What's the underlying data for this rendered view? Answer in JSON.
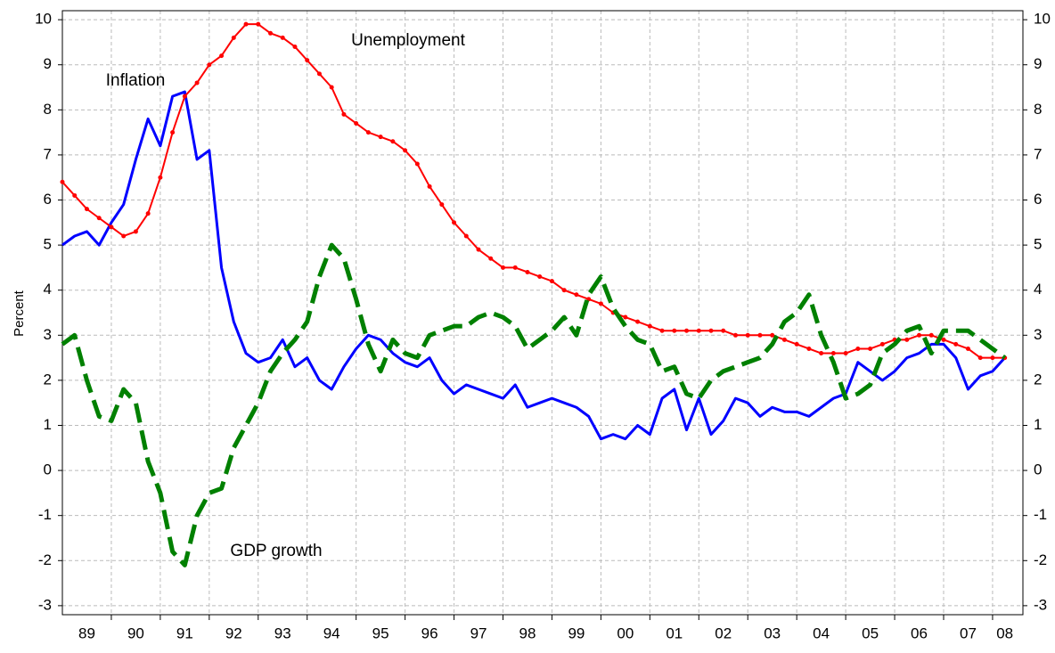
{
  "chart_data": {
    "type": "line",
    "annotations": [
      "Inflation",
      "Unemployment",
      "GDP growth"
    ],
    "ylabel": "Percent",
    "x": [
      1989,
      1989.25,
      1989.5,
      1989.75,
      1990,
      1990.25,
      1990.5,
      1990.75,
      1991,
      1991.25,
      1991.5,
      1991.75,
      1992,
      1992.25,
      1992.5,
      1992.75,
      1993,
      1993.25,
      1993.5,
      1993.75,
      1994,
      1994.25,
      1994.5,
      1994.75,
      1995,
      1995.25,
      1995.5,
      1995.75,
      1996,
      1996.25,
      1996.5,
      1996.75,
      1997,
      1997.25,
      1997.5,
      1997.75,
      1998,
      1998.25,
      1998.5,
      1998.75,
      1999,
      1999.25,
      1999.5,
      1999.75,
      2000,
      2000.25,
      2000.5,
      2000.75,
      2001,
      2001.25,
      2001.5,
      2001.75,
      2002,
      2002.25,
      2002.5,
      2002.75,
      2003,
      2003.25,
      2003.5,
      2003.75,
      2004,
      2004.25,
      2004.5,
      2004.75,
      2005,
      2005.25,
      2005.5,
      2005.75,
      2006,
      2006.25,
      2006.5,
      2006.75,
      2007,
      2007.25,
      2007.5,
      2007.75,
      2008,
      2008.25
    ],
    "series": [
      {
        "name": "Inflation",
        "color": "#0000ff",
        "style": "solid",
        "values": [
          5.0,
          5.2,
          5.3,
          5.0,
          5.5,
          5.9,
          6.9,
          7.8,
          7.2,
          8.3,
          8.4,
          6.9,
          7.1,
          4.5,
          3.3,
          2.6,
          2.4,
          2.5,
          2.9,
          2.3,
          2.5,
          2.0,
          1.8,
          2.3,
          2.7,
          3.0,
          2.9,
          2.6,
          2.4,
          2.3,
          2.5,
          2.0,
          1.7,
          1.9,
          1.8,
          1.7,
          1.6,
          1.9,
          1.4,
          1.5,
          1.6,
          1.5,
          1.4,
          1.2,
          0.7,
          0.8,
          0.7,
          1.0,
          0.8,
          1.6,
          1.8,
          0.9,
          1.6,
          0.8,
          1.1,
          1.6,
          1.5,
          1.2,
          1.4,
          1.3,
          1.3,
          1.2,
          1.4,
          1.6,
          1.7,
          2.4,
          2.2,
          2.0,
          2.2,
          2.5,
          2.6,
          2.8,
          2.8,
          2.5,
          1.8,
          2.1,
          2.2,
          2.5
        ]
      },
      {
        "name": "Unemployment",
        "color": "#ff0000",
        "style": "dots",
        "values": [
          6.4,
          6.1,
          5.8,
          5.6,
          5.4,
          5.2,
          5.3,
          5.7,
          6.5,
          7.5,
          8.3,
          8.6,
          9.0,
          9.2,
          9.6,
          9.9,
          9.9,
          9.7,
          9.6,
          9.4,
          9.1,
          8.8,
          8.5,
          7.9,
          7.7,
          7.5,
          7.4,
          7.3,
          7.1,
          6.8,
          6.3,
          5.9,
          5.5,
          5.2,
          4.9,
          4.7,
          4.5,
          4.5,
          4.4,
          4.3,
          4.2,
          4.0,
          3.9,
          3.8,
          3.7,
          3.5,
          3.4,
          3.3,
          3.2,
          3.1,
          3.1,
          3.1,
          3.1,
          3.1,
          3.1,
          3.0,
          3.0,
          3.0,
          3.0,
          2.9,
          2.8,
          2.7,
          2.6,
          2.6,
          2.6,
          2.7,
          2.7,
          2.8,
          2.9,
          2.9,
          3.0,
          3.0,
          2.9,
          2.8,
          2.7,
          2.5,
          2.5,
          2.5
        ]
      },
      {
        "name": "GDP growth",
        "color": "#008000",
        "style": "dashed",
        "values": [
          2.8,
          3.0,
          2.0,
          1.2,
          1.1,
          1.8,
          1.5,
          0.2,
          -0.5,
          -1.8,
          -2.1,
          -1.0,
          -0.5,
          -0.4,
          0.5,
          1.0,
          1.5,
          2.2,
          2.6,
          2.9,
          3.3,
          4.3,
          5.0,
          4.7,
          3.8,
          2.8,
          2.2,
          2.9,
          2.6,
          2.5,
          3.0,
          3.1,
          3.2,
          3.2,
          3.4,
          3.5,
          3.4,
          3.2,
          2.7,
          2.9,
          3.1,
          3.4,
          3.0,
          3.9,
          4.3,
          3.6,
          3.2,
          2.9,
          2.8,
          2.2,
          2.3,
          1.7,
          1.6,
          2.0,
          2.2,
          2.3,
          2.4,
          2.5,
          2.8,
          3.3,
          3.5,
          3.9,
          3.0,
          2.4,
          1.6,
          1.7,
          1.9,
          2.6,
          2.8,
          3.1,
          3.2,
          2.6,
          3.1,
          3.1,
          3.1,
          2.9,
          2.7,
          2.5
        ]
      }
    ],
    "xlim": [
      1989,
      2008.62
    ],
    "xticks": [
      {
        "value": 1989.5,
        "label": "89"
      },
      {
        "value": 1990.5,
        "label": "90"
      },
      {
        "value": 1991.5,
        "label": "91"
      },
      {
        "value": 1992.5,
        "label": "92"
      },
      {
        "value": 1993.5,
        "label": "93"
      },
      {
        "value": 1994.5,
        "label": "94"
      },
      {
        "value": 1995.5,
        "label": "95"
      },
      {
        "value": 1996.5,
        "label": "96"
      },
      {
        "value": 1997.5,
        "label": "97"
      },
      {
        "value": 1998.5,
        "label": "98"
      },
      {
        "value": 1999.5,
        "label": "99"
      },
      {
        "value": 2000.5,
        "label": "00"
      },
      {
        "value": 2001.5,
        "label": "01"
      },
      {
        "value": 2002.5,
        "label": "02"
      },
      {
        "value": 2003.5,
        "label": "03"
      },
      {
        "value": 2004.5,
        "label": "04"
      },
      {
        "value": 2005.5,
        "label": "05"
      },
      {
        "value": 2006.5,
        "label": "06"
      },
      {
        "value": 2007.5,
        "label": "07"
      },
      {
        "value": 2008.25,
        "label": "08"
      }
    ],
    "xgrid": [
      1990,
      1991,
      1992,
      1993,
      1994,
      1995,
      1996,
      1997,
      1998,
      1999,
      2000,
      2001,
      2002,
      2003,
      2004,
      2005,
      2006,
      2007,
      2008
    ],
    "ylim": [
      -3.2,
      10.2
    ],
    "yticks": [
      -3,
      -2,
      -1,
      0,
      1,
      2,
      3,
      4,
      5,
      6,
      7,
      8,
      9,
      10
    ],
    "y2lim": [
      -3.2,
      10.2
    ],
    "y2ticks": [
      -3,
      -2,
      -1,
      0,
      1,
      2,
      3,
      4,
      5,
      6,
      7,
      8,
      9,
      10
    ],
    "grid": true
  }
}
